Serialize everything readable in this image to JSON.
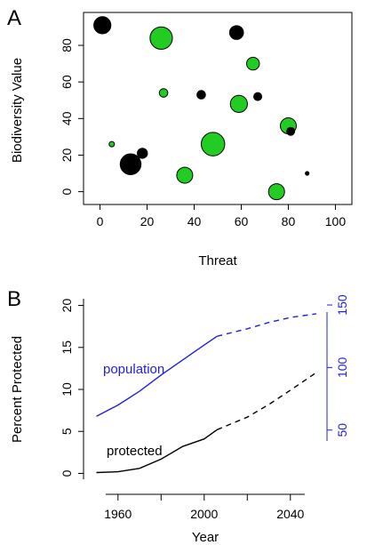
{
  "chart_data": [
    {
      "panel_label": "A",
      "type": "scatter",
      "xlabel": "Threat",
      "ylabel": "Biodiversity Value",
      "xlim": [
        -7,
        107
      ],
      "ylim": [
        -7,
        98
      ],
      "xticks": [
        0,
        20,
        40,
        60,
        80,
        100
      ],
      "yticks": [
        0,
        20,
        40,
        60,
        80
      ],
      "grid": false,
      "colors": {
        "green": "#22cc22",
        "black": "#000000"
      },
      "points": [
        {
          "x": 1,
          "y": 91,
          "size": 3.2,
          "color": "black"
        },
        {
          "x": 26,
          "y": 84,
          "size": 4.2,
          "color": "green"
        },
        {
          "x": 58,
          "y": 87,
          "size": 2.6,
          "color": "black"
        },
        {
          "x": 65,
          "y": 70,
          "size": 2.4,
          "color": "green"
        },
        {
          "x": 27,
          "y": 54,
          "size": 1.6,
          "color": "green"
        },
        {
          "x": 43,
          "y": 53,
          "size": 1.6,
          "color": "black"
        },
        {
          "x": 59,
          "y": 48,
          "size": 3.2,
          "color": "green"
        },
        {
          "x": 67,
          "y": 52,
          "size": 1.5,
          "color": "black"
        },
        {
          "x": 80,
          "y": 36,
          "size": 3.0,
          "color": "green"
        },
        {
          "x": 81,
          "y": 33,
          "size": 1.5,
          "color": "black"
        },
        {
          "x": 48,
          "y": 26,
          "size": 4.4,
          "color": "green"
        },
        {
          "x": 5,
          "y": 26,
          "size": 1.0,
          "color": "green"
        },
        {
          "x": 18,
          "y": 21,
          "size": 1.9,
          "color": "black"
        },
        {
          "x": 13,
          "y": 15,
          "size": 3.9,
          "color": "black"
        },
        {
          "x": 36,
          "y": 9,
          "size": 3.0,
          "color": "green"
        },
        {
          "x": 88,
          "y": 10,
          "size": 0.7,
          "color": "black"
        },
        {
          "x": 75,
          "y": 0,
          "size": 3.0,
          "color": "green"
        }
      ]
    },
    {
      "panel_label": "B",
      "type": "line",
      "xlabel": "Year",
      "ylabel": "Percent Protected",
      "xlim": [
        1944,
        2057
      ],
      "ylim": [
        -0.8,
        20.8
      ],
      "xticks": [
        1960,
        2000,
        2040
      ],
      "yticks": [
        0,
        5,
        10,
        15,
        20
      ],
      "y2lim": [
        10,
        155
      ],
      "y2ticks": [
        50,
        100,
        150
      ],
      "grid": false,
      "series": [
        {
          "name": "protected",
          "axis": "left",
          "color": "#000000",
          "solid": {
            "x": [
              1950,
              1960,
              1970,
              1980,
              1990,
              2000,
              2006
            ],
            "y": [
              0.1,
              0.2,
              0.6,
              1.7,
              3.2,
              4.1,
              5.2
            ]
          },
          "dashed": {
            "x": [
              2006,
              2020,
              2030,
              2040,
              2052
            ],
            "y": [
              5.2,
              6.7,
              8.2,
              9.9,
              12.0
            ]
          }
        },
        {
          "name": "population",
          "axis": "right",
          "color": "#1f1fdd",
          "solid": {
            "x": [
              1950,
              1960,
              1970,
              1980,
              1990,
              2000,
              2006
            ],
            "y": [
              61,
              70,
              81,
              94,
              106,
              118,
              125
            ]
          },
          "dashed": {
            "x": [
              2006,
              2020,
              2030,
              2040,
              2052
            ],
            "y": [
              125,
              131,
              136,
              140,
              143
            ]
          }
        }
      ]
    }
  ]
}
